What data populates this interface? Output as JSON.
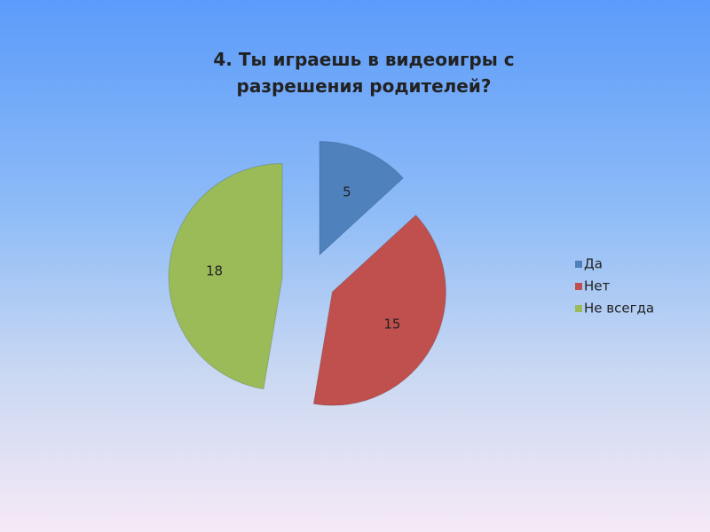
{
  "chart_data": {
    "type": "pie",
    "title": "4. Ты играешь в видеоигры с разрешения родителей?",
    "categories": [
      "Да",
      "Нет",
      "Не всегда"
    ],
    "values": [
      5,
      15,
      18
    ],
    "colors": [
      "#4f81bd",
      "#c0504d",
      "#9bbb59"
    ],
    "legend": "right",
    "exploded": true
  }
}
